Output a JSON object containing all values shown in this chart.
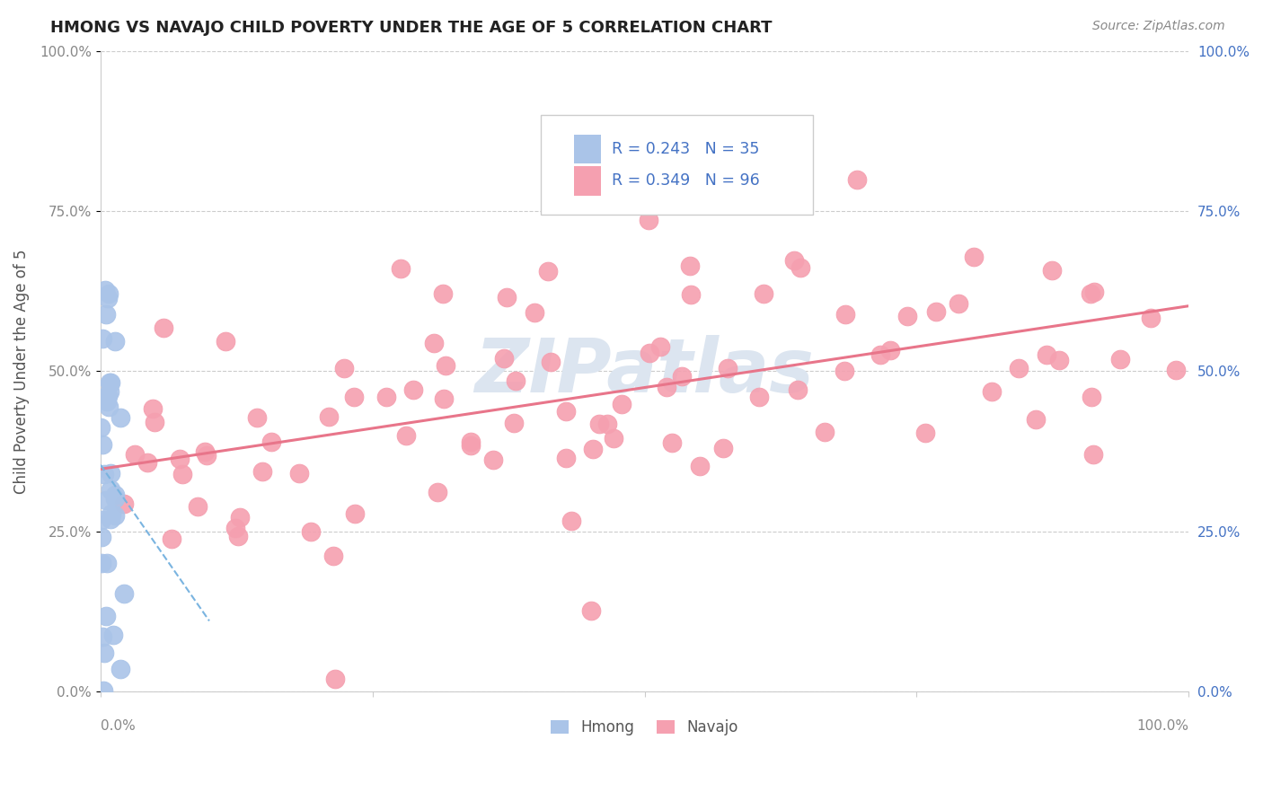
{
  "title": "HMONG VS NAVAJO CHILD POVERTY UNDER THE AGE OF 5 CORRELATION CHART",
  "source": "Source: ZipAtlas.com",
  "ylabel": "Child Poverty Under the Age of 5",
  "xlim": [
    0,
    1
  ],
  "ylim": [
    0,
    1
  ],
  "yticks": [
    0.0,
    0.25,
    0.5,
    0.75,
    1.0
  ],
  "ytick_labels": [
    "0.0%",
    "25.0%",
    "50.0%",
    "75.0%",
    "100.0%"
  ],
  "hmong_R": 0.243,
  "hmong_N": 35,
  "navajo_R": 0.349,
  "navajo_N": 96,
  "hmong_color": "#aac4e8",
  "hmong_edge_color": "#aac4e8",
  "navajo_color": "#f5a0b0",
  "navajo_edge_color": "#f5a0b0",
  "hmong_line_color": "#7ab4e0",
  "navajo_line_color": "#e8758a",
  "background_color": "#ffffff",
  "grid_color": "#cccccc",
  "left_tick_color": "#888888",
  "right_tick_color": "#4472c4",
  "watermark_color": "#dce5f0",
  "title_color": "#222222",
  "source_color": "#888888"
}
